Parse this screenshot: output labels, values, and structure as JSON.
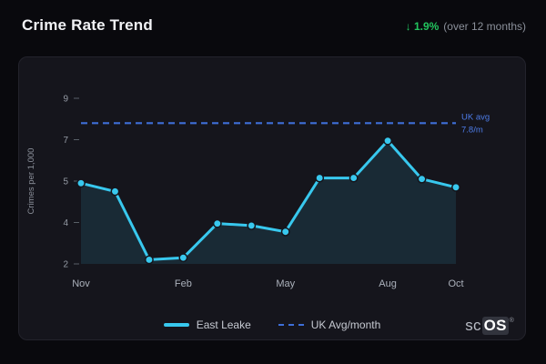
{
  "header": {
    "title": "Crime Rate Trend",
    "delta_arrow": "↓",
    "delta_value": "1.9%",
    "delta_suffix": "(over 12 months)",
    "delta_color": "#22c55e"
  },
  "chart_data": {
    "type": "line",
    "title": "Crime Rate Trend",
    "ylabel": "Crimes per 1,000",
    "y_ticks": [
      2,
      4,
      5,
      7,
      9
    ],
    "x_tick_labels": [
      "Nov",
      "Feb",
      "May",
      "Aug",
      "Oct"
    ],
    "x_tick_indices": [
      0,
      3,
      6,
      9,
      11
    ],
    "grid": "off",
    "legend_position": "bottom-center",
    "series": [
      {
        "name": "East Leake",
        "color": "#38c8ee",
        "values": [
          4.95,
          4.75,
          2.2,
          2.3,
          3.95,
          3.85,
          3.55,
          5.15,
          5.15,
          6.95,
          5.1,
          4.85
        ]
      },
      {
        "name": "UK Avg/month",
        "type": "reference-line",
        "color": "#3e6fd8",
        "label_color": "#4d7ce8",
        "value": 7.8,
        "label_line1": "UK avg",
        "label_line2": "7.8/m"
      }
    ],
    "legend": [
      {
        "label": "East Leake",
        "style": "solid",
        "color": "#38c8ee"
      },
      {
        "label": "UK Avg/month",
        "style": "dashed",
        "color": "#3e6fd8"
      }
    ]
  },
  "footer": {
    "logo_prefix": "sc",
    "logo_suffix": "OS",
    "reg": "®"
  }
}
